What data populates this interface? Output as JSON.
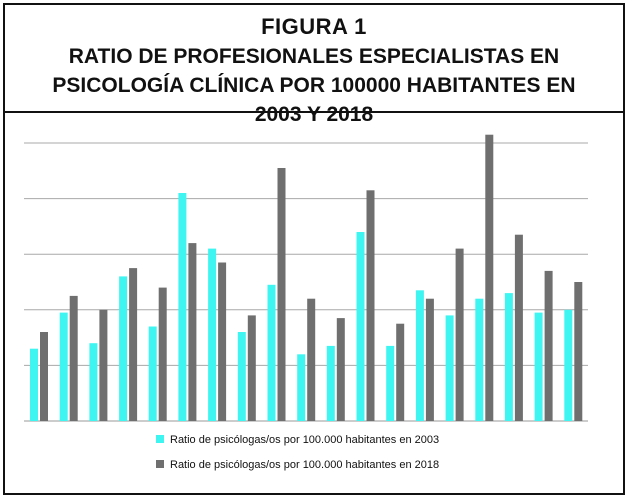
{
  "header": {
    "figure_label": "FIGURA 1",
    "title": "RATIO DE PROFESIONALES ESPECIALISTAS EN PSICOLOGÍA CLÍNICA POR 100000 HABITANTES EN 2003 Y 2018"
  },
  "chart_data": {
    "type": "bar",
    "title": "RATIO DE PROFESIONALES ESPECIALISTAS EN PSICOLOGÍA CLÍNICA POR 100000 HABITANTES EN 2003 Y 2018",
    "xlabel": "",
    "ylabel": "",
    "categories": [
      "",
      "",
      "",
      "",
      "",
      "",
      "",
      "",
      "",
      "",
      "",
      "",
      "",
      "",
      "",
      "",
      "",
      "",
      ""
    ],
    "ylim": [
      0,
      10
    ],
    "grid": true,
    "grid_lines": 5,
    "legend_position": "bottom",
    "series": [
      {
        "name": "Ratio de psicólogas/os por 100.000 habitantes en 2003",
        "color": "#3ff5f2",
        "values": [
          2.6,
          3.9,
          2.8,
          5.2,
          3.4,
          8.2,
          6.2,
          3.2,
          4.9,
          2.4,
          2.7,
          6.8,
          2.7,
          4.7,
          3.8,
          4.4,
          4.6,
          3.9,
          4.0
        ]
      },
      {
        "name": "Ratio de psicólogas/os por 100.000 habitantes en 2018",
        "color": "#6f6f6f",
        "values": [
          3.2,
          4.5,
          4.0,
          5.5,
          4.8,
          6.4,
          5.7,
          3.8,
          9.1,
          4.4,
          3.7,
          8.3,
          3.5,
          4.4,
          6.2,
          10.3,
          6.7,
          5.4,
          5.0
        ]
      }
    ]
  }
}
